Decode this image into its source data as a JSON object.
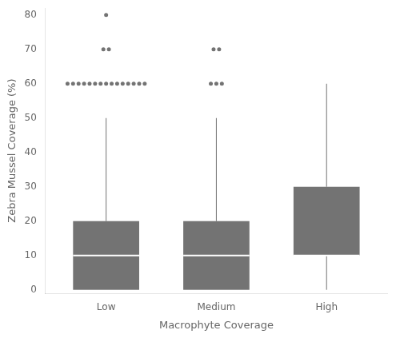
{
  "chart_data": {
    "type": "box",
    "xlabel": "Macrophyte Coverage",
    "ylabel": "Zebra Mussel Coverage (%)",
    "categories": [
      "Low",
      "Medium",
      "High"
    ],
    "boxes": [
      {
        "q1": 0,
        "median": 10,
        "q3": 20,
        "whislo": 0,
        "whishi": 50,
        "fliers": [
          60,
          60,
          60,
          60,
          60,
          60,
          60,
          60,
          60,
          60,
          60,
          60,
          60,
          60,
          60,
          70,
          70,
          80
        ]
      },
      {
        "q1": 0,
        "median": 10,
        "q3": 20,
        "whislo": 0,
        "whishi": 50,
        "fliers": [
          60,
          60,
          60,
          70,
          70
        ]
      },
      {
        "q1": 10,
        "median": 10,
        "q3": 30,
        "whislo": 0,
        "whishi": 60,
        "fliers": []
      }
    ],
    "color": "#737373",
    "ylim": [
      -1,
      82
    ],
    "yticks": [
      0,
      10,
      20,
      30,
      40,
      50,
      60,
      70,
      80
    ],
    "grid": false
  }
}
